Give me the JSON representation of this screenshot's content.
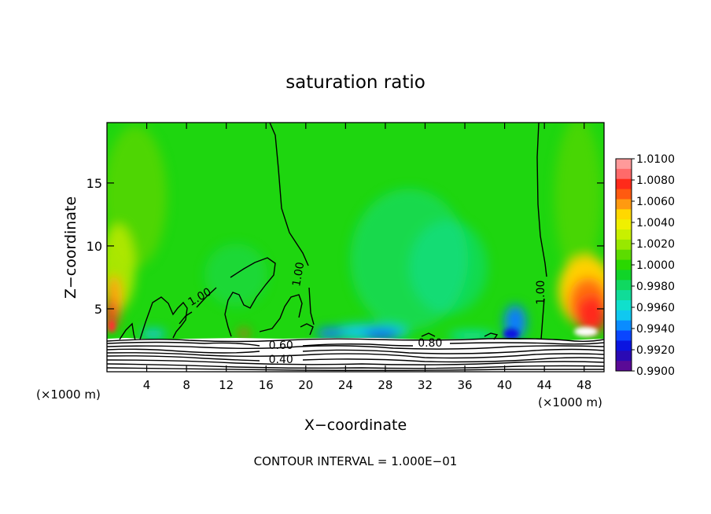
{
  "chart_data": {
    "type": "heatmap",
    "title": "saturation ratio",
    "xlabel": "X−coordinate",
    "ylabel": "Z−coordinate",
    "x_unit_left": "(×1000 m)",
    "x_unit_right": "(×1000 m)",
    "xlim": [
      0,
      50
    ],
    "ylim": [
      0,
      19.8
    ],
    "xticks": [
      4,
      8,
      12,
      16,
      20,
      24,
      28,
      32,
      36,
      40,
      44,
      48
    ],
    "xtick_labels": [
      "4",
      "8",
      "12",
      "16",
      "20",
      "24",
      "28",
      "32",
      "36",
      "40",
      "44",
      "48"
    ],
    "yticks": [
      5,
      10,
      15
    ],
    "ytick_labels": [
      "5",
      "10",
      "15"
    ],
    "colorbar": {
      "levels": [
        "1.0100",
        "1.0080",
        "1.0060",
        "1.0040",
        "1.0020",
        "1.0000",
        "0.9980",
        "0.9960",
        "0.9940",
        "0.9920",
        "0.9900"
      ],
      "colors": [
        "#ff9a9a",
        "#ff6a6a",
        "#ff2a1a",
        "#ff5a10",
        "#ff9a10",
        "#ffd800",
        "#f0f000",
        "#c8f000",
        "#98e800",
        "#5cdc00",
        "#2ad800",
        "#10d428",
        "#10d860",
        "#10dc98",
        "#10e0cc",
        "#10c8f0",
        "#0a8cff",
        "#0a46ff",
        "#0a14e0",
        "#2a0ab4",
        "#5a0a96"
      ]
    },
    "contour_labels": [
      {
        "text": "1.00",
        "x": 9.5,
        "z": 5.7
      },
      {
        "text": "1.00",
        "x": 19.6,
        "z": 7.7
      },
      {
        "text": "1.00",
        "x": 44.0,
        "z": 6.3
      },
      {
        "text": "0.80",
        "x": 32.5,
        "z": 2.0
      },
      {
        "text": "0.60",
        "x": 17.5,
        "z": 1.8
      },
      {
        "text": "0.40",
        "x": 17.5,
        "z": 0.7
      }
    ],
    "grid": false,
    "legend": "right"
  },
  "footer": "CONTOUR INTERVAL = 1.000E−01"
}
